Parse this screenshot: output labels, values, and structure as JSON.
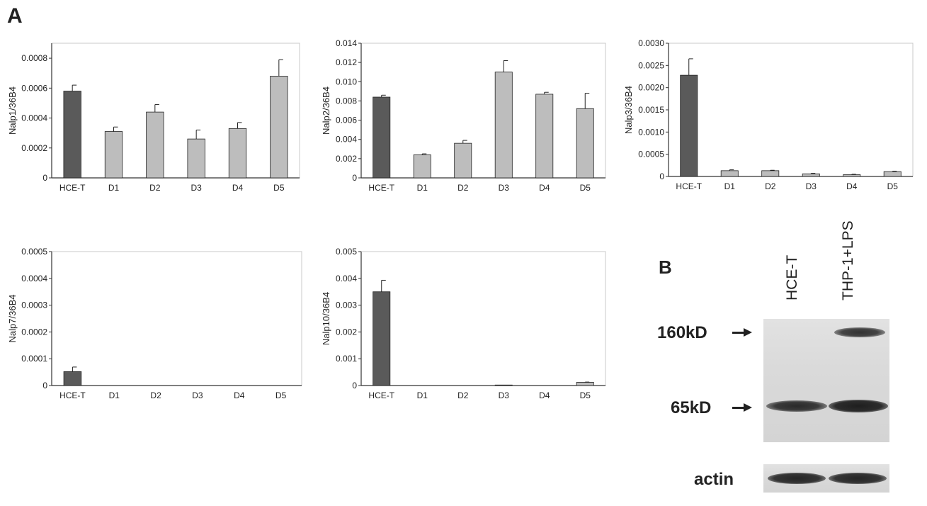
{
  "panel_a_label": "A",
  "panel_b_label": "B",
  "chart_data": [
    {
      "type": "bar",
      "ylabel": "Nalp1/36B4",
      "categories": [
        "HCE-T",
        "D1",
        "D2",
        "D3",
        "D4",
        "D5"
      ],
      "values": [
        0.00058,
        0.00031,
        0.00044,
        0.00026,
        0.00033,
        0.00068
      ],
      "errors": [
        4e-05,
        3e-05,
        5e-05,
        6e-05,
        4e-05,
        0.00011
      ],
      "ylim": [
        0,
        0.0009
      ],
      "yticks": [
        "0",
        "0.0002",
        "0.0004",
        "0.0006",
        "0.0008"
      ],
      "ytick_values": [
        0,
        0.0002,
        0.0004,
        0.0006,
        0.0008
      ],
      "colors": {
        "first": "#5a5a5a",
        "rest": "#bdbdbd"
      }
    },
    {
      "type": "bar",
      "ylabel": "Nalp2/36B4",
      "categories": [
        "HCE-T",
        "D1",
        "D2",
        "D3",
        "D4",
        "D5"
      ],
      "values": [
        0.0084,
        0.0024,
        0.0036,
        0.011,
        0.0087,
        0.0072
      ],
      "errors": [
        0.0002,
        0.0001,
        0.0003,
        0.0012,
        0.0002,
        0.0016
      ],
      "ylim": [
        0,
        0.014
      ],
      "yticks": [
        "0",
        "0.002",
        "0.004",
        "0.006",
        "0.008",
        "0.010",
        "0.012",
        "0.014"
      ],
      "ytick_values": [
        0,
        0.002,
        0.004,
        0.006,
        0.008,
        0.01,
        0.012,
        0.014
      ],
      "colors": {
        "first": "#5a5a5a",
        "rest": "#bdbdbd"
      }
    },
    {
      "type": "bar",
      "ylabel": "Nalp3/36B4",
      "categories": [
        "HCE-T",
        "D1",
        "D2",
        "D3",
        "D4",
        "D5"
      ],
      "values": [
        0.00228,
        0.00013,
        0.00013,
        6e-05,
        4e-05,
        0.00011
      ],
      "errors": [
        0.00037,
        2e-05,
        1e-05,
        1e-05,
        1e-05,
        1e-05
      ],
      "ylim": [
        0,
        0.003
      ],
      "yticks": [
        "0",
        "0.0005",
        "0.0010",
        "0.0015",
        "0.0020",
        "0.0025",
        "0.0030"
      ],
      "ytick_values": [
        0,
        0.0005,
        0.001,
        0.0015,
        0.002,
        0.0025,
        0.003
      ],
      "colors": {
        "first": "#5a5a5a",
        "rest": "#bdbdbd"
      }
    },
    {
      "type": "bar",
      "ylabel": "Nalp7/36B4",
      "categories": [
        "HCE-T",
        "D1",
        "D2",
        "D3",
        "D4",
        "D5"
      ],
      "values": [
        5.2e-05,
        0,
        0,
        0,
        0,
        0
      ],
      "errors": [
        1.7e-05,
        0,
        0,
        0,
        0,
        0
      ],
      "ylim": [
        0,
        0.0005
      ],
      "yticks": [
        "0",
        "0.0001",
        "0.0002",
        "0.0003",
        "0.0004",
        "0.0005"
      ],
      "ytick_values": [
        0,
        0.0001,
        0.0002,
        0.0003,
        0.0004,
        0.0005
      ],
      "colors": {
        "first": "#5a5a5a",
        "rest": "#bdbdbd"
      }
    },
    {
      "type": "bar",
      "ylabel": "Nalp10/36B4",
      "categories": [
        "HCE-T",
        "D1",
        "D2",
        "D3",
        "D4",
        "D5"
      ],
      "values": [
        0.0035,
        0,
        0,
        2e-05,
        0,
        0.00012
      ],
      "errors": [
        0.00043,
        0,
        0,
        0,
        0,
        1e-05
      ],
      "ylim": [
        0,
        0.005
      ],
      "yticks": [
        "0",
        "0.001",
        "0.002",
        "0.003",
        "0.004",
        "0.005"
      ],
      "ytick_values": [
        0,
        0.001,
        0.002,
        0.003,
        0.004,
        0.005
      ],
      "colors": {
        "first": "#5a5a5a",
        "rest": "#bdbdbd"
      }
    }
  ],
  "blot": {
    "lanes": [
      "HCE-T",
      "THP-1+LPS"
    ],
    "markers": [
      "160kD",
      "65kD"
    ],
    "loading_control": "actin"
  }
}
